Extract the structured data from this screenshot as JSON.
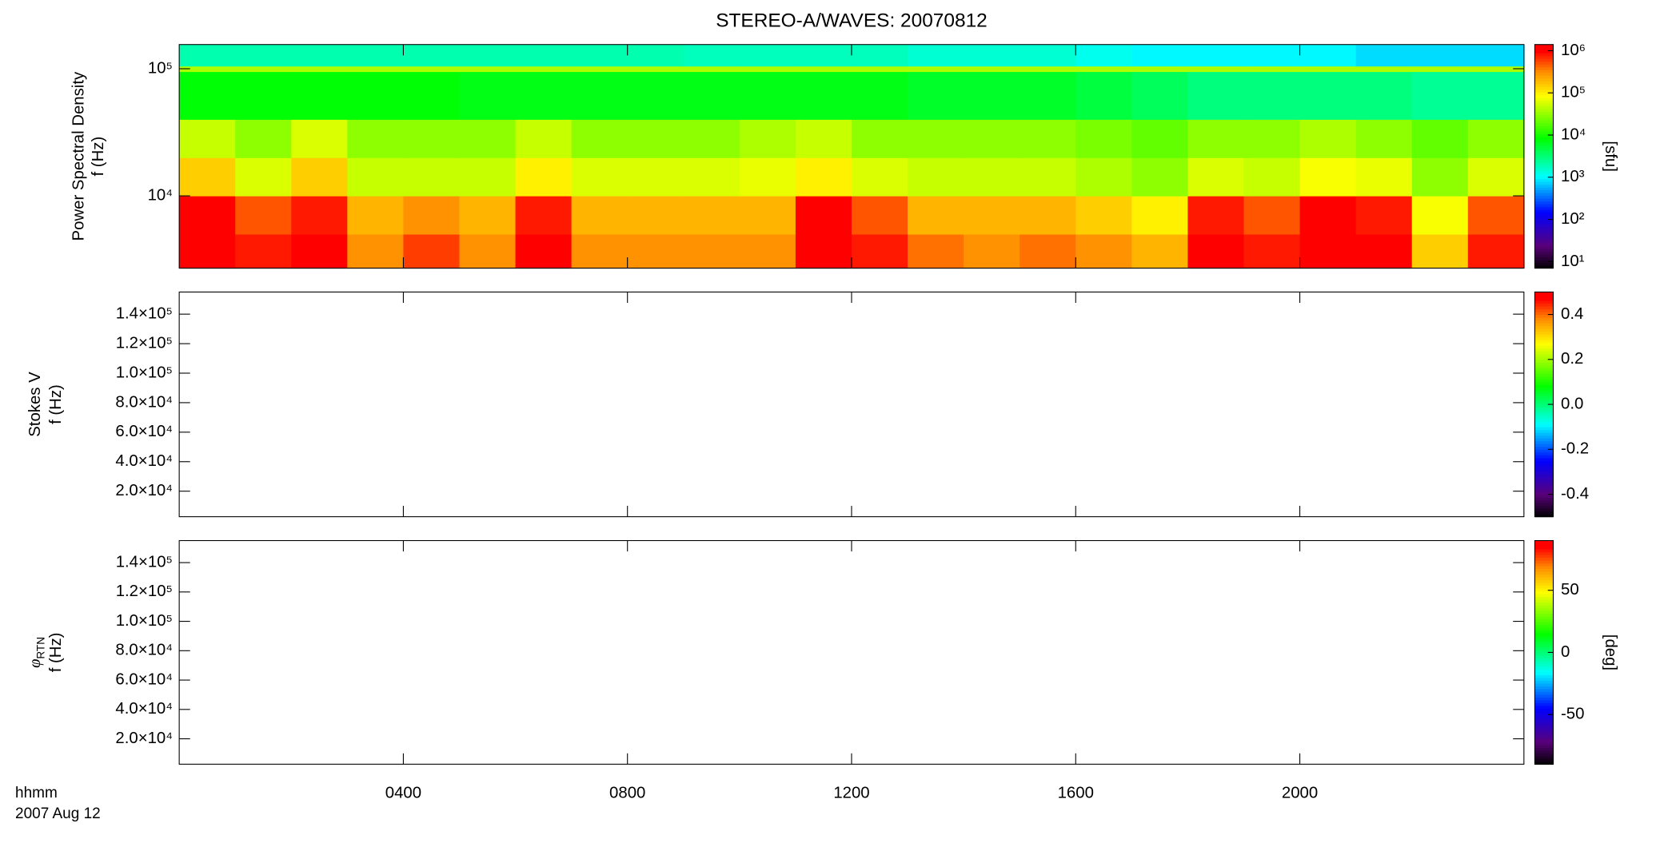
{
  "figure": {
    "title": "STEREO-A/WAVES: 20070812",
    "time_label": "hhmm",
    "date_label": "2007 Aug 12",
    "xlim": [
      0,
      24
    ],
    "xticks": [
      {
        "value": 4,
        "label": "0400"
      },
      {
        "value": 8,
        "label": "0800"
      },
      {
        "value": 12,
        "label": "1200"
      },
      {
        "value": 16,
        "label": "1600"
      },
      {
        "value": 20,
        "label": "2000"
      }
    ]
  },
  "chart_data": [
    {
      "type": "heatmap",
      "ylabel": "Power Spectral Density",
      "ylabel2": "f (Hz)",
      "ylog": true,
      "ylim": [
        2700,
        155000
      ],
      "yticks": [
        {
          "value": 10000,
          "label": "10⁴"
        },
        {
          "value": 100000,
          "label": "10⁵"
        }
      ],
      "time_edges": [
        0,
        1,
        2,
        3,
        4,
        5,
        6,
        7,
        8,
        9,
        10,
        11,
        12,
        13,
        14,
        15,
        16,
        17,
        18,
        19,
        20,
        21,
        22,
        23,
        24
      ],
      "freq_edges": [
        2700,
        5000,
        10000,
        20000,
        40000,
        95000,
        105000,
        155000
      ],
      "values": [
        [
          1000000.0,
          800000.0,
          1000000.0,
          300000.0,
          600000.0,
          300000.0,
          1000000.0,
          300000.0,
          300000.0,
          300000.0,
          300000.0,
          1000000.0,
          800000.0,
          400000.0,
          300000.0,
          400000.0,
          300000.0,
          200000.0,
          1000000.0,
          800000.0,
          1000000.0,
          1000000.0,
          150000.0,
          800000.0
        ],
        [
          1000000.0,
          500000.0,
          800000.0,
          200000.0,
          300000.0,
          200000.0,
          800000.0,
          200000.0,
          200000.0,
          200000.0,
          200000.0,
          1000000.0,
          500000.0,
          200000.0,
          200000.0,
          200000.0,
          150000.0,
          100000.0,
          800000.0,
          500000.0,
          1000000.0,
          800000.0,
          80000.0,
          500000.0
        ],
        [
          150000.0,
          60000.0,
          150000.0,
          50000.0,
          50000.0,
          50000.0,
          100000.0,
          60000.0,
          60000.0,
          60000.0,
          70000.0,
          100000.0,
          60000.0,
          50000.0,
          50000.0,
          50000.0,
          40000.0,
          30000.0,
          60000.0,
          50000.0,
          80000.0,
          70000.0,
          30000.0,
          60000.0
        ],
        [
          50000.0,
          30000.0,
          60000.0,
          30000.0,
          30000.0,
          30000.0,
          50000.0,
          30000.0,
          30000.0,
          30000.0,
          40000.0,
          50000.0,
          30000.0,
          30000.0,
          30000.0,
          30000.0,
          25000.0,
          20000.0,
          30000.0,
          30000.0,
          40000.0,
          30000.0,
          20000.0,
          30000.0
        ],
        [
          8000.0,
          8000.0,
          8000.0,
          8000.0,
          8000.0,
          7000.0,
          7000.0,
          7000.0,
          7000.0,
          7000.0,
          7000.0,
          7000.0,
          7000.0,
          6000.0,
          6000.0,
          6000.0,
          5000.0,
          4000.0,
          3000.0,
          3000.0,
          3000.0,
          3000.0,
          2500.0,
          2500.0
        ],
        [
          40000.0,
          40000.0,
          40000.0,
          40000.0,
          40000.0,
          40000.0,
          40000.0,
          40000.0,
          40000.0,
          40000.0,
          40000.0,
          40000.0,
          40000.0,
          40000.0,
          40000.0,
          40000.0,
          40000.0,
          40000.0,
          40000.0,
          40000.0,
          40000.0,
          40000.0,
          40000.0,
          40000.0
        ],
        [
          2000.0,
          2000.0,
          2000.0,
          2000.0,
          2000.0,
          2000.0,
          2000.0,
          2000.0,
          2000.0,
          1800.0,
          1800.0,
          1800.0,
          1800.0,
          1500.0,
          1500.0,
          1500.0,
          1200.0,
          1000.0,
          1000.0,
          1000.0,
          1000.0,
          800.0,
          800.0,
          800.0
        ]
      ],
      "colorbar": {
        "log": true,
        "lim": [
          7,
          1400000
        ],
        "label": "[sfu]",
        "ticks": [
          {
            "value": 10,
            "label": "10¹"
          },
          {
            "value": 100,
            "label": "10²"
          },
          {
            "value": 1000,
            "label": "10³"
          },
          {
            "value": 10000,
            "label": "10⁴"
          },
          {
            "value": 100000,
            "label": "10⁵"
          },
          {
            "value": 1000000,
            "label": "10⁶"
          }
        ]
      }
    },
    {
      "type": "heatmap",
      "ylabel": "Stokes V",
      "ylabel2": "f (Hz)",
      "ylog": false,
      "ylim": [
        2700,
        155000
      ],
      "yticks": [
        {
          "value": 20000,
          "label": "2.0×10⁴"
        },
        {
          "value": 40000,
          "label": "4.0×10⁴"
        },
        {
          "value": 60000,
          "label": "6.0×10⁴"
        },
        {
          "value": 80000,
          "label": "8.0×10⁴"
        },
        {
          "value": 100000,
          "label": "1.0×10⁵"
        },
        {
          "value": 120000,
          "label": "1.2×10⁵"
        },
        {
          "value": 140000,
          "label": "1.4×10⁵"
        }
      ],
      "colorbar": {
        "log": false,
        "lim": [
          -0.5,
          0.5
        ],
        "ticks": [
          -0.4,
          -0.2,
          {
            "value": 0,
            "label": "0.0"
          },
          0.2,
          0.4
        ]
      }
    },
    {
      "type": "heatmap",
      "ylabel": "φ",
      "ylabel_sub": "RTN",
      "ylabel2": "f (Hz)",
      "ylog": false,
      "ylim": [
        2700,
        155000
      ],
      "yticks": [
        {
          "value": 20000,
          "label": "2.0×10⁴"
        },
        {
          "value": 40000,
          "label": "4.0×10⁴"
        },
        {
          "value": 60000,
          "label": "6.0×10⁴"
        },
        {
          "value": 80000,
          "label": "8.0×10⁴"
        },
        {
          "value": 100000,
          "label": "1.0×10⁵"
        },
        {
          "value": 120000,
          "label": "1.2×10⁵"
        },
        {
          "value": 140000,
          "label": "1.4×10⁵"
        }
      ],
      "colorbar": {
        "log": false,
        "lim": [
          -90,
          90
        ],
        "label": "[deg]",
        "ticks": [
          -50,
          0,
          50
        ]
      }
    }
  ]
}
